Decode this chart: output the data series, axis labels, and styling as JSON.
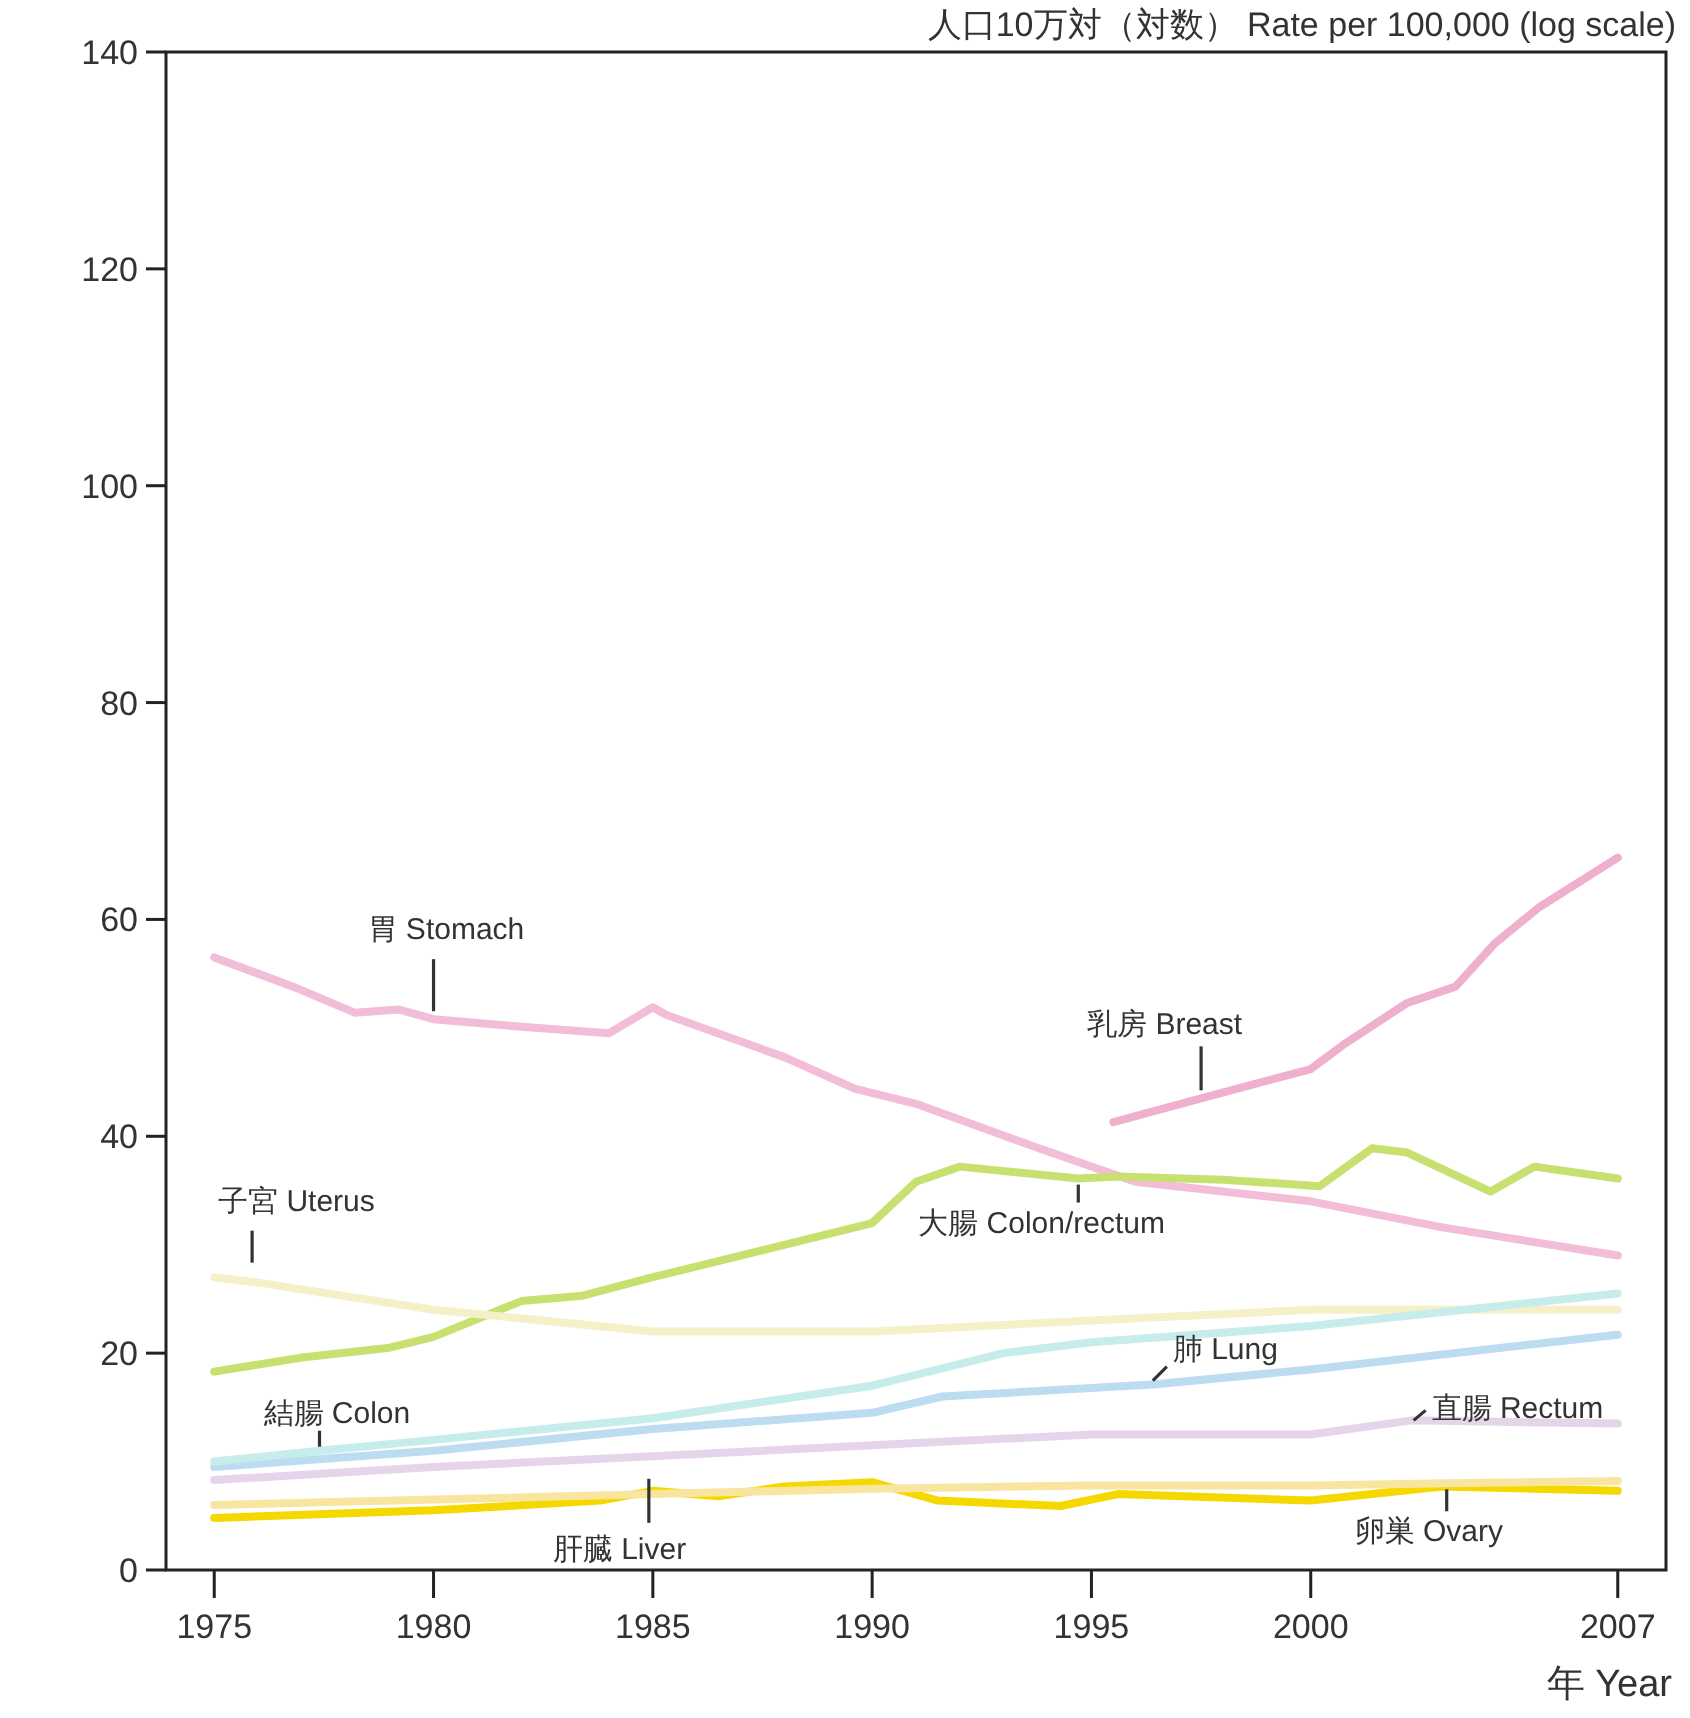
{
  "chart_data": {
    "type": "line",
    "title": "人口10万対（対数） Rate per 100,000 (log scale)",
    "xlabel": "年 Year",
    "xlim": [
      1973.9,
      2008.1
    ],
    "xticks": [
      1975,
      1980,
      1985,
      1990,
      1995,
      2000,
      2007
    ],
    "ylim": [
      0,
      140
    ],
    "yticks": [
      0,
      20,
      40,
      60,
      80,
      100,
      120,
      140
    ],
    "series": [
      {
        "name": "胃 Stomach",
        "color": "#f2bdd6",
        "x": [
          1975,
          1976.8,
          1978.2,
          1979.2,
          1980,
          1982,
          1984,
          1985,
          1985.3,
          1988,
          1989.6,
          1991,
          1993.8,
          1996,
          2000,
          2003,
          2007
        ],
        "values": [
          56.5,
          53.8,
          51.4,
          51.7,
          50.8,
          50.1,
          49.5,
          51.9,
          51.2,
          47.3,
          44.4,
          43,
          38.9,
          35.8,
          34,
          31.6,
          29
        ]
      },
      {
        "name": "乳房 Breast",
        "color": "#eeb0cc",
        "x": [
          1995.5,
          1997.5,
          2000,
          2000.8,
          2002.2,
          2003.3,
          2004.2,
          2005.2,
          2007
        ],
        "values": [
          41.3,
          43.5,
          46.2,
          48.6,
          52.3,
          53.8,
          57.8,
          61.1,
          65.7
        ]
      },
      {
        "name": "大腸 Colon/rectum",
        "color": "#c8e070",
        "x": [
          1975,
          1977,
          1979,
          1980,
          1982,
          1983.4,
          1985,
          1987,
          1990,
          1991,
          1992,
          1994.7,
          1995.6,
          1998,
          2000.2,
          2001.4,
          2002.2,
          2004.1,
          2005.1,
          2007
        ],
        "values": [
          18.3,
          19.6,
          20.5,
          21.5,
          24.8,
          25.3,
          27,
          29,
          32,
          35.8,
          37.2,
          36.1,
          36.3,
          36,
          35.4,
          38.9,
          38.5,
          34.9,
          37.2,
          36.1
        ]
      },
      {
        "name": "子宮 Uterus",
        "color": "#f6f0c8",
        "x": [
          1975,
          1976,
          1980,
          1985,
          1990,
          1995,
          2000,
          2007
        ],
        "values": [
          27,
          26.5,
          24,
          22,
          22,
          23,
          24,
          24
        ]
      },
      {
        "name": "肺 Lung",
        "color": "#bcdcf0",
        "x": [
          1975,
          1980,
          1985,
          1990,
          1991.6,
          1996.4,
          2000,
          2007
        ],
        "values": [
          9.5,
          11,
          13,
          14.5,
          16,
          17.1,
          18.5,
          21.7
        ]
      },
      {
        "name": "結腸 Colon",
        "color": "#c6ecec",
        "x": [
          1975,
          1977.4,
          1980,
          1985,
          1990,
          1993,
          1995,
          2000,
          2007
        ],
        "values": [
          10,
          11,
          12,
          14,
          17,
          20,
          21,
          22.5,
          25.5
        ]
      },
      {
        "name": "直腸 Rectum",
        "color": "#e6d4ea",
        "x": [
          1975,
          1980,
          1985,
          1990,
          1995,
          2000,
          2002.3,
          2007
        ],
        "values": [
          8.3,
          9.5,
          10.5,
          11.5,
          12.5,
          12.5,
          13.8,
          13.5
        ]
      },
      {
        "name": "肝臓 Liver",
        "color": "#f5d800",
        "x": [
          1975,
          1980,
          1983.8,
          1985,
          1986.5,
          1988,
          1990,
          1991.5,
          1994.3,
          1995.6,
          2000,
          2003,
          2007
        ],
        "values": [
          4.8,
          5.5,
          6.4,
          7.3,
          6.8,
          7.7,
          8.1,
          6.4,
          5.9,
          7,
          6.4,
          7.7,
          7.3
        ]
      },
      {
        "name": "卵巣 Ovary",
        "color": "#f8e6a0",
        "x": [
          1975,
          1980,
          1985,
          1990,
          1995,
          2000,
          2003.1,
          2007
        ],
        "values": [
          6,
          6.5,
          7,
          7.5,
          7.8,
          7.8,
          8,
          8.2
        ]
      }
    ]
  }
}
